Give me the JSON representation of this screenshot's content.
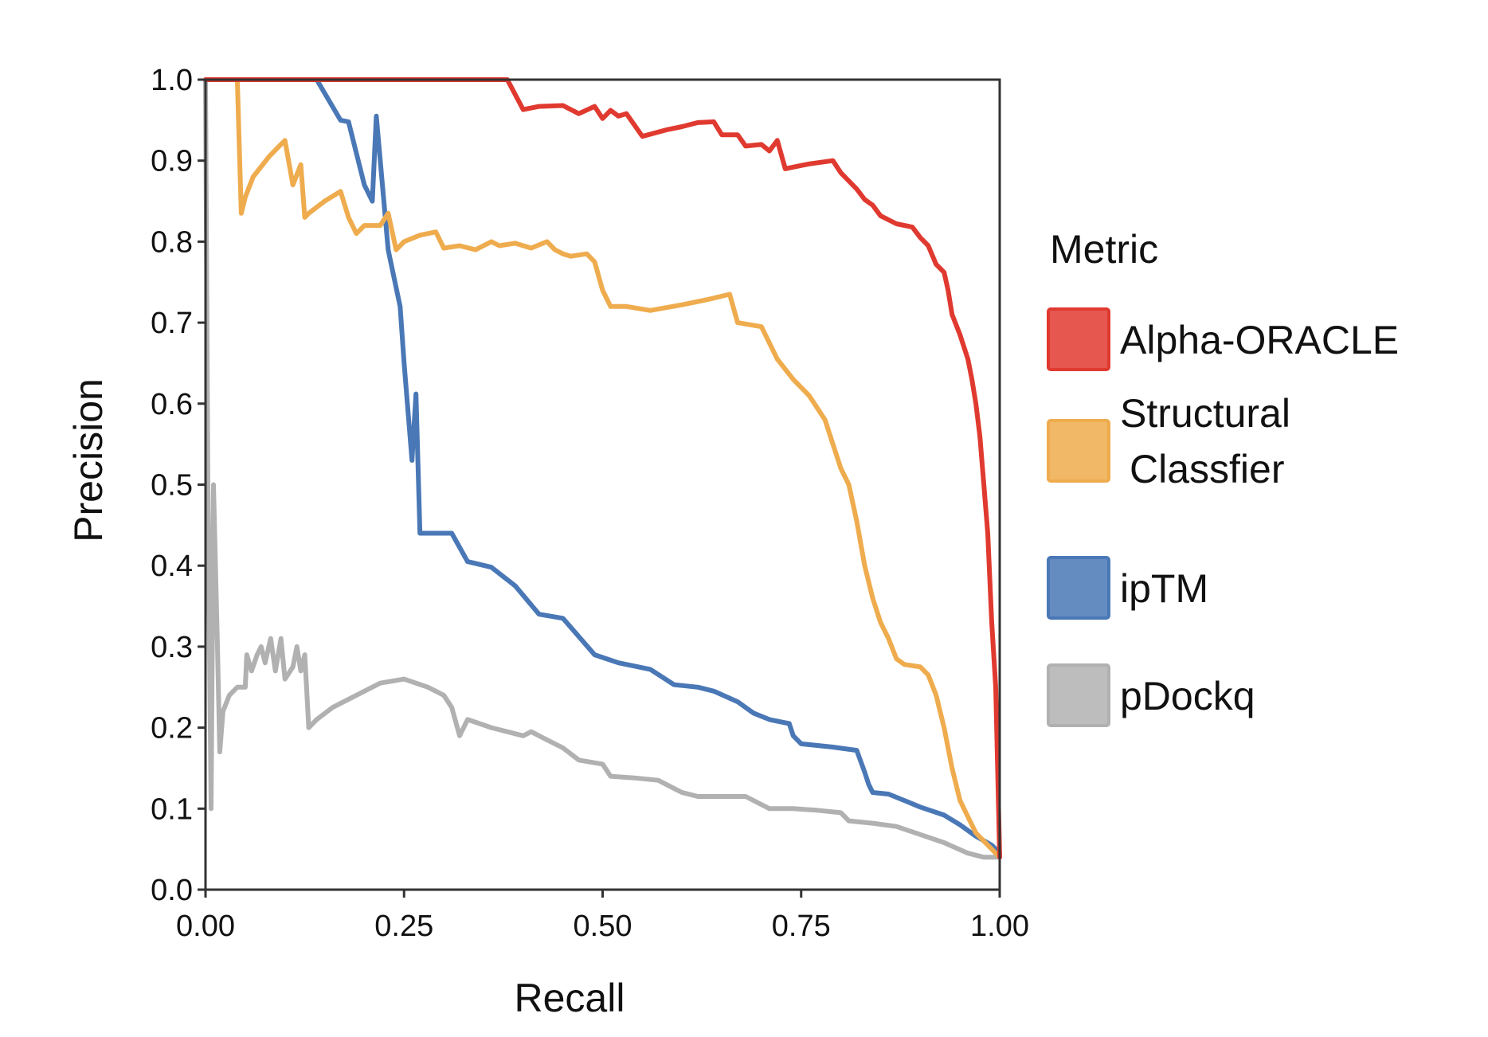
{
  "chart_data": {
    "type": "line",
    "title": "",
    "xlabel": "Recall",
    "ylabel": "Precision",
    "xlim": [
      0,
      1
    ],
    "ylim": [
      0,
      1
    ],
    "x_ticks": [
      "0.00",
      "0.25",
      "0.50",
      "0.75",
      "1.00"
    ],
    "x_tick_values": [
      0,
      0.25,
      0.5,
      0.75,
      1.0
    ],
    "y_ticks": [
      "0.0",
      "0.1",
      "0.2",
      "0.3",
      "0.4",
      "0.5",
      "0.6",
      "0.7",
      "0.8",
      "0.9",
      "1.0"
    ],
    "y_tick_values": [
      0,
      0.1,
      0.2,
      0.3,
      0.4,
      0.5,
      0.6,
      0.7,
      0.8,
      0.9,
      1.0
    ],
    "grid": false,
    "legend": {
      "title": "Metric",
      "placement": "right"
    },
    "series": [
      {
        "name": "Alpha-ORACLE",
        "legend_lines": [
          "Alpha-ORACLE"
        ],
        "color": "#e03a30",
        "points": [
          [
            0,
            1.0
          ],
          [
            0.38,
            1.0
          ],
          [
            0.4,
            0.963
          ],
          [
            0.42,
            0.967
          ],
          [
            0.45,
            0.968
          ],
          [
            0.47,
            0.958
          ],
          [
            0.49,
            0.967
          ],
          [
            0.5,
            0.952
          ],
          [
            0.51,
            0.962
          ],
          [
            0.52,
            0.955
          ],
          [
            0.53,
            0.958
          ],
          [
            0.55,
            0.93
          ],
          [
            0.58,
            0.938
          ],
          [
            0.6,
            0.942
          ],
          [
            0.62,
            0.947
          ],
          [
            0.64,
            0.948
          ],
          [
            0.65,
            0.932
          ],
          [
            0.67,
            0.932
          ],
          [
            0.68,
            0.918
          ],
          [
            0.7,
            0.92
          ],
          [
            0.71,
            0.912
          ],
          [
            0.72,
            0.925
          ],
          [
            0.73,
            0.89
          ],
          [
            0.74,
            0.892
          ],
          [
            0.76,
            0.896
          ],
          [
            0.79,
            0.9
          ],
          [
            0.8,
            0.885
          ],
          [
            0.82,
            0.865
          ],
          [
            0.83,
            0.852
          ],
          [
            0.84,
            0.845
          ],
          [
            0.85,
            0.832
          ],
          [
            0.87,
            0.822
          ],
          [
            0.89,
            0.818
          ],
          [
            0.9,
            0.805
          ],
          [
            0.91,
            0.795
          ],
          [
            0.92,
            0.772
          ],
          [
            0.93,
            0.762
          ],
          [
            0.935,
            0.74
          ],
          [
            0.94,
            0.71
          ],
          [
            0.95,
            0.685
          ],
          [
            0.96,
            0.655
          ],
          [
            0.965,
            0.63
          ],
          [
            0.97,
            0.6
          ],
          [
            0.975,
            0.56
          ],
          [
            0.98,
            0.5
          ],
          [
            0.985,
            0.44
          ],
          [
            0.99,
            0.33
          ],
          [
            0.995,
            0.25
          ],
          [
            1.0,
            0.04
          ]
        ]
      },
      {
        "name": "Structural Classfier",
        "legend_lines": [
          "Structural",
          "Classfier"
        ],
        "color": "#efac4e",
        "points": [
          [
            0,
            1.0
          ],
          [
            0.04,
            1.0
          ],
          [
            0.045,
            0.835
          ],
          [
            0.05,
            0.855
          ],
          [
            0.06,
            0.88
          ],
          [
            0.08,
            0.905
          ],
          [
            0.09,
            0.915
          ],
          [
            0.1,
            0.925
          ],
          [
            0.11,
            0.87
          ],
          [
            0.12,
            0.895
          ],
          [
            0.125,
            0.83
          ],
          [
            0.13,
            0.835
          ],
          [
            0.15,
            0.85
          ],
          [
            0.17,
            0.862
          ],
          [
            0.18,
            0.83
          ],
          [
            0.19,
            0.81
          ],
          [
            0.2,
            0.82
          ],
          [
            0.22,
            0.82
          ],
          [
            0.23,
            0.835
          ],
          [
            0.24,
            0.79
          ],
          [
            0.25,
            0.8
          ],
          [
            0.27,
            0.808
          ],
          [
            0.29,
            0.812
          ],
          [
            0.3,
            0.792
          ],
          [
            0.32,
            0.795
          ],
          [
            0.34,
            0.79
          ],
          [
            0.36,
            0.8
          ],
          [
            0.37,
            0.795
          ],
          [
            0.39,
            0.798
          ],
          [
            0.41,
            0.792
          ],
          [
            0.43,
            0.8
          ],
          [
            0.44,
            0.79
          ],
          [
            0.45,
            0.785
          ],
          [
            0.46,
            0.782
          ],
          [
            0.48,
            0.785
          ],
          [
            0.49,
            0.775
          ],
          [
            0.5,
            0.74
          ],
          [
            0.51,
            0.72
          ],
          [
            0.53,
            0.72
          ],
          [
            0.56,
            0.715
          ],
          [
            0.6,
            0.722
          ],
          [
            0.63,
            0.728
          ],
          [
            0.66,
            0.735
          ],
          [
            0.67,
            0.7
          ],
          [
            0.7,
            0.695
          ],
          [
            0.72,
            0.655
          ],
          [
            0.74,
            0.63
          ],
          [
            0.76,
            0.61
          ],
          [
            0.78,
            0.58
          ],
          [
            0.79,
            0.55
          ],
          [
            0.8,
            0.52
          ],
          [
            0.81,
            0.5
          ],
          [
            0.82,
            0.455
          ],
          [
            0.83,
            0.4
          ],
          [
            0.84,
            0.36
          ],
          [
            0.85,
            0.33
          ],
          [
            0.86,
            0.31
          ],
          [
            0.87,
            0.285
          ],
          [
            0.88,
            0.278
          ],
          [
            0.9,
            0.275
          ],
          [
            0.91,
            0.265
          ],
          [
            0.92,
            0.24
          ],
          [
            0.93,
            0.2
          ],
          [
            0.94,
            0.15
          ],
          [
            0.95,
            0.11
          ],
          [
            0.96,
            0.09
          ],
          [
            0.97,
            0.07
          ],
          [
            0.98,
            0.06
          ],
          [
            0.99,
            0.05
          ],
          [
            1.0,
            0.04
          ]
        ]
      },
      {
        "name": "ipTM",
        "legend_lines": [
          "ipTM"
        ],
        "color": "#4a78b6",
        "points": [
          [
            0,
            1.0
          ],
          [
            0.14,
            1.0
          ],
          [
            0.17,
            0.95
          ],
          [
            0.18,
            0.948
          ],
          [
            0.2,
            0.87
          ],
          [
            0.21,
            0.85
          ],
          [
            0.215,
            0.955
          ],
          [
            0.23,
            0.79
          ],
          [
            0.245,
            0.72
          ],
          [
            0.25,
            0.65
          ],
          [
            0.26,
            0.53
          ],
          [
            0.265,
            0.612
          ],
          [
            0.27,
            0.44
          ],
          [
            0.31,
            0.44
          ],
          [
            0.33,
            0.405
          ],
          [
            0.36,
            0.398
          ],
          [
            0.39,
            0.375
          ],
          [
            0.42,
            0.34
          ],
          [
            0.45,
            0.335
          ],
          [
            0.49,
            0.29
          ],
          [
            0.52,
            0.28
          ],
          [
            0.56,
            0.272
          ],
          [
            0.59,
            0.253
          ],
          [
            0.62,
            0.25
          ],
          [
            0.64,
            0.245
          ],
          [
            0.67,
            0.232
          ],
          [
            0.69,
            0.218
          ],
          [
            0.71,
            0.21
          ],
          [
            0.735,
            0.205
          ],
          [
            0.74,
            0.19
          ],
          [
            0.75,
            0.18
          ],
          [
            0.79,
            0.176
          ],
          [
            0.82,
            0.172
          ],
          [
            0.83,
            0.145
          ],
          [
            0.835,
            0.13
          ],
          [
            0.84,
            0.12
          ],
          [
            0.86,
            0.118
          ],
          [
            0.88,
            0.11
          ],
          [
            0.9,
            0.102
          ],
          [
            0.93,
            0.092
          ],
          [
            0.95,
            0.08
          ],
          [
            0.97,
            0.066
          ],
          [
            0.99,
            0.055
          ],
          [
            1.0,
            0.045
          ]
        ]
      },
      {
        "name": "pDockq",
        "legend_lines": [
          "pDockq"
        ],
        "color": "#b1b1b1",
        "points": [
          [
            0,
            1.0
          ],
          [
            0.003,
            0.5
          ],
          [
            0.007,
            0.1
          ],
          [
            0.01,
            0.5
          ],
          [
            0.015,
            0.3
          ],
          [
            0.018,
            0.17
          ],
          [
            0.022,
            0.22
          ],
          [
            0.03,
            0.24
          ],
          [
            0.04,
            0.25
          ],
          [
            0.05,
            0.25
          ],
          [
            0.052,
            0.29
          ],
          [
            0.058,
            0.27
          ],
          [
            0.065,
            0.29
          ],
          [
            0.07,
            0.3
          ],
          [
            0.075,
            0.28
          ],
          [
            0.082,
            0.31
          ],
          [
            0.088,
            0.27
          ],
          [
            0.095,
            0.31
          ],
          [
            0.1,
            0.26
          ],
          [
            0.11,
            0.275
          ],
          [
            0.115,
            0.3
          ],
          [
            0.12,
            0.27
          ],
          [
            0.125,
            0.29
          ],
          [
            0.13,
            0.2
          ],
          [
            0.14,
            0.21
          ],
          [
            0.16,
            0.225
          ],
          [
            0.19,
            0.24
          ],
          [
            0.22,
            0.255
          ],
          [
            0.25,
            0.26
          ],
          [
            0.28,
            0.25
          ],
          [
            0.3,
            0.24
          ],
          [
            0.31,
            0.225
          ],
          [
            0.32,
            0.19
          ],
          [
            0.33,
            0.21
          ],
          [
            0.36,
            0.2
          ],
          [
            0.38,
            0.195
          ],
          [
            0.4,
            0.19
          ],
          [
            0.41,
            0.195
          ],
          [
            0.43,
            0.185
          ],
          [
            0.45,
            0.175
          ],
          [
            0.47,
            0.16
          ],
          [
            0.5,
            0.155
          ],
          [
            0.51,
            0.14
          ],
          [
            0.54,
            0.138
          ],
          [
            0.57,
            0.135
          ],
          [
            0.59,
            0.125
          ],
          [
            0.6,
            0.12
          ],
          [
            0.62,
            0.115
          ],
          [
            0.65,
            0.115
          ],
          [
            0.68,
            0.115
          ],
          [
            0.71,
            0.1
          ],
          [
            0.74,
            0.1
          ],
          [
            0.77,
            0.098
          ],
          [
            0.8,
            0.095
          ],
          [
            0.81,
            0.085
          ],
          [
            0.84,
            0.082
          ],
          [
            0.87,
            0.078
          ],
          [
            0.9,
            0.068
          ],
          [
            0.93,
            0.058
          ],
          [
            0.96,
            0.045
          ],
          [
            0.98,
            0.04
          ],
          [
            1.0,
            0.04
          ]
        ]
      }
    ]
  }
}
